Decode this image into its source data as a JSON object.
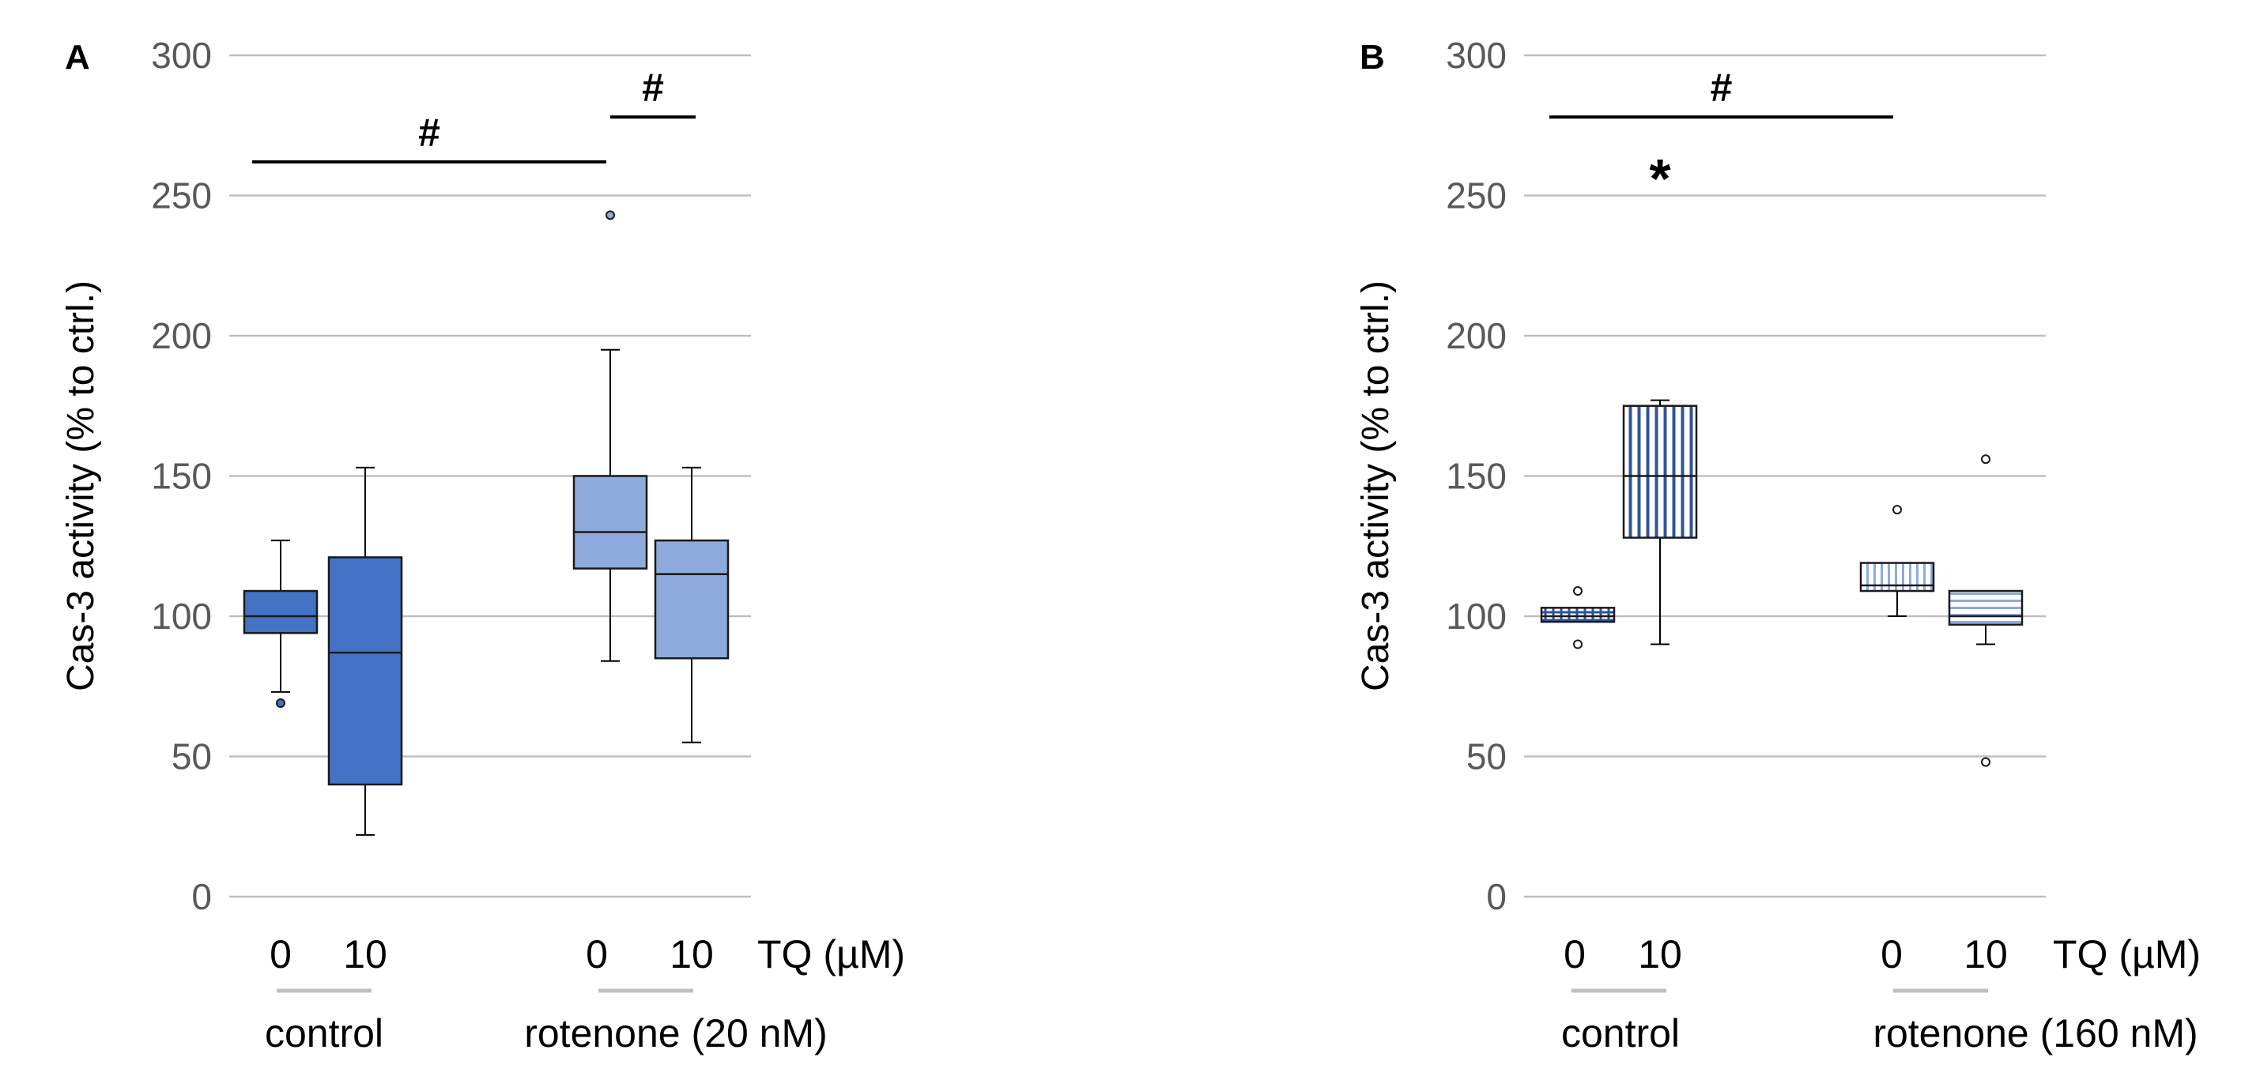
{
  "chart_data": [
    {
      "panel": "A",
      "type": "box",
      "ylabel": "Cas-3 activity (% to ctrl.)",
      "ylim": [
        0,
        300
      ],
      "yticks": [
        0,
        50,
        100,
        150,
        200,
        250,
        300
      ],
      "grid": true,
      "x_variable_label": "TQ (µM)",
      "groups": [
        {
          "label": "control",
          "categories": [
            "0",
            "10"
          ]
        },
        {
          "label": "rotenone (20 nM)",
          "categories": [
            "0",
            "10"
          ]
        }
      ],
      "boxes": [
        {
          "group": "control",
          "tq": "0",
          "whisker_low": 73,
          "q1": 94,
          "median": 100,
          "q3": 109,
          "whisker_high": 127,
          "outliers": [
            69
          ],
          "color": "#4472C4",
          "pattern": "solid"
        },
        {
          "group": "control",
          "tq": "10",
          "whisker_low": 22,
          "q1": 40,
          "median": 87,
          "q3": 121,
          "whisker_high": 153,
          "outliers": [],
          "color": "#4472C4",
          "pattern": "solid"
        },
        {
          "group": "rotenone (20 nM)",
          "tq": "0",
          "whisker_low": 84,
          "q1": 117,
          "median": 130,
          "q3": 150,
          "whisker_high": 195,
          "outliers": [
            243
          ],
          "color": "#8FAADC",
          "pattern": "solid"
        },
        {
          "group": "rotenone (20 nM)",
          "tq": "10",
          "whisker_low": 55,
          "q1": 85,
          "median": 115,
          "q3": 127,
          "whisker_high": 153,
          "outliers": [],
          "color": "#8FAADC",
          "pattern": "solid"
        }
      ],
      "annotations": [
        {
          "text": "#",
          "from_box": 0,
          "to_box": 2,
          "y": 262
        },
        {
          "text": "#",
          "from_box": 2,
          "to_box": 3,
          "y": 278
        }
      ]
    },
    {
      "panel": "B",
      "type": "box",
      "ylabel": "Cas-3 activity (% to ctrl.)",
      "ylim": [
        0,
        300
      ],
      "yticks": [
        0,
        50,
        100,
        150,
        200,
        250,
        300
      ],
      "grid": true,
      "x_variable_label": "TQ (µM)",
      "groups": [
        {
          "label": "control",
          "categories": [
            "0",
            "10"
          ]
        },
        {
          "label": "rotenone (160 nM)",
          "categories": [
            "0",
            "10"
          ]
        }
      ],
      "boxes": [
        {
          "group": "control",
          "tq": "0",
          "whisker_low": 98,
          "q1": 98,
          "median": 100,
          "q3": 103,
          "whisker_high": 103,
          "outliers": [
            90,
            109
          ],
          "color": "#2F5597",
          "pattern": "grid"
        },
        {
          "group": "control",
          "tq": "10",
          "whisker_low": 90,
          "q1": 128,
          "median": 150,
          "q3": 175,
          "whisker_high": 177,
          "outliers": [],
          "color": "#2F5597",
          "pattern": "vertical"
        },
        {
          "group": "rotenone (160 nM)",
          "tq": "0",
          "whisker_low": 100,
          "q1": 109,
          "median": 111,
          "q3": 119,
          "whisker_high": 119,
          "outliers": [
            138
          ],
          "color": "#8FAADC",
          "pattern": "vertical"
        },
        {
          "group": "rotenone (160 nM)",
          "tq": "10",
          "whisker_low": 90,
          "q1": 97,
          "median": 100,
          "q3": 109,
          "whisker_high": 109,
          "outliers": [
            48,
            156
          ],
          "color": "#8FAADC",
          "pattern": "horizontal"
        }
      ],
      "annotations": [
        {
          "text": "#",
          "from_box": 0,
          "to_box": 2,
          "y": 278
        },
        {
          "text": "*",
          "at_box": 1,
          "y": 255
        }
      ]
    }
  ]
}
